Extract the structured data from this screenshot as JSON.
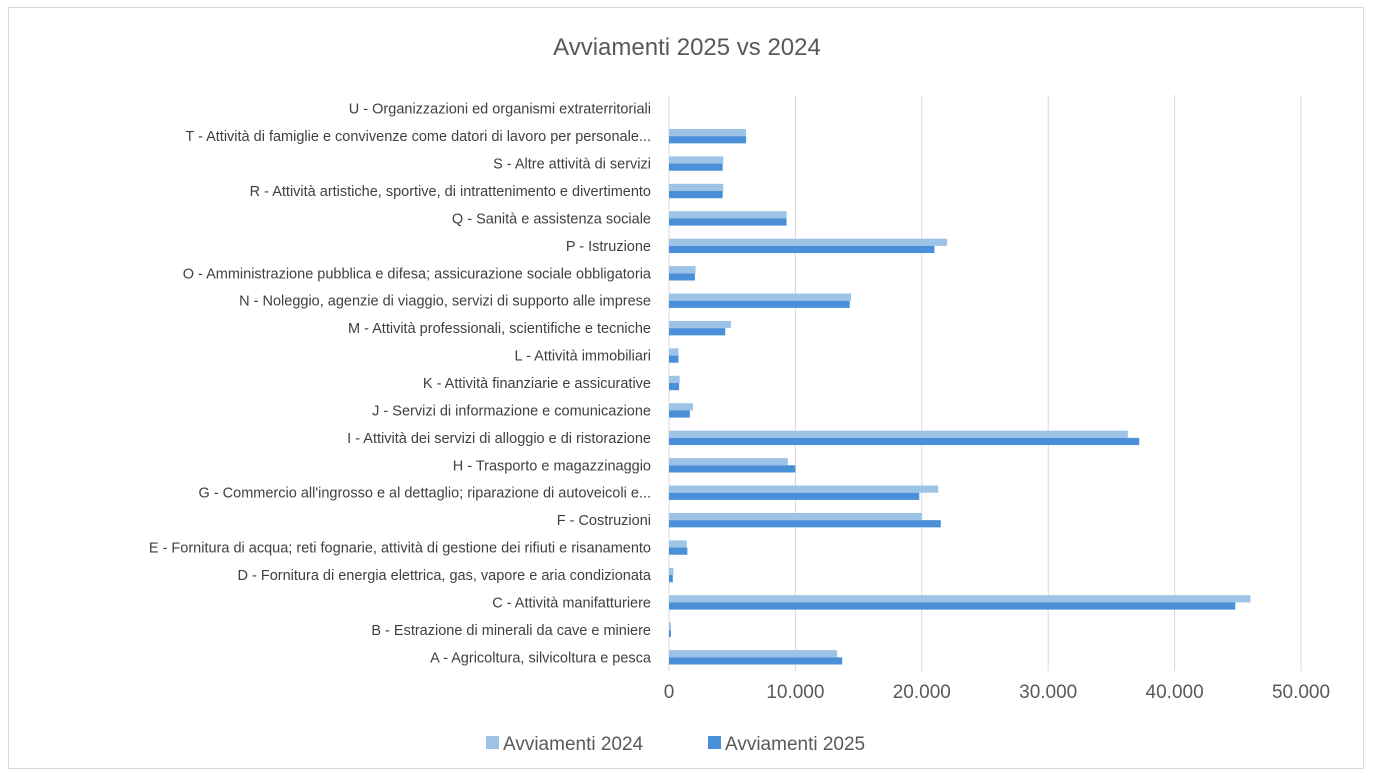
{
  "chart_data": {
    "type": "bar",
    "orientation": "horizontal",
    "title": "Avviamenti 2025 vs 2024",
    "categories": [
      "A - Agricoltura, silvicoltura e pesca",
      "B - Estrazione di minerali da cave e miniere",
      "C - Attività manifatturiere",
      "D - Fornitura di energia elettrica, gas, vapore e aria condizionata",
      "E - Fornitura di acqua; reti fognarie, attività di gestione dei rifiuti e risanamento",
      "F - Costruzioni",
      "G - Commercio all'ingrosso e al dettaglio; riparazione di autoveicoli e...",
      "H - Trasporto e magazzinaggio",
      "I - Attività dei servizi di alloggio e di ristorazione",
      "J - Servizi di informazione e comunicazione",
      "K - Attività finanziarie e assicurative",
      "L - Attività immobiliari",
      "M - Attività professionali, scientifiche e tecniche",
      "N - Noleggio, agenzie di viaggio, servizi di supporto alle imprese",
      "O - Amministrazione pubblica e difesa; assicurazione sociale obbligatoria",
      "P - Istruzione",
      "Q - Sanità e assistenza sociale",
      "R - Attività artistiche, sportive, di intrattenimento e divertimento",
      "S - Altre attività di servizi",
      "T - Attività di famiglie e convivenze come datori di lavoro per personale...",
      "U - Organizzazioni ed organismi extraterritoriali"
    ],
    "series": [
      {
        "name": "Avviamenti 2024",
        "color": "#9dc3e6",
        "values": [
          13300,
          150,
          46000,
          350,
          1400,
          20000,
          21300,
          9400,
          36300,
          1900,
          850,
          750,
          4900,
          14400,
          2100,
          22000,
          9300,
          4300,
          4300,
          6100,
          0
        ]
      },
      {
        "name": "Avviamenti 2025",
        "color": "#4a90d9",
        "values": [
          13700,
          150,
          44800,
          300,
          1450,
          21500,
          19800,
          10000,
          37200,
          1650,
          800,
          750,
          4450,
          14300,
          2050,
          21000,
          9300,
          4250,
          4250,
          6100,
          0
        ]
      }
    ],
    "xlim": [
      0,
      50000
    ],
    "x_ticks": [
      "0",
      "10.000",
      "20.000",
      "30.000",
      "40.000",
      "50.000"
    ],
    "x_tick_values": [
      0,
      10000,
      20000,
      30000,
      40000,
      50000
    ],
    "grid": true,
    "legend_position": "bottom"
  }
}
